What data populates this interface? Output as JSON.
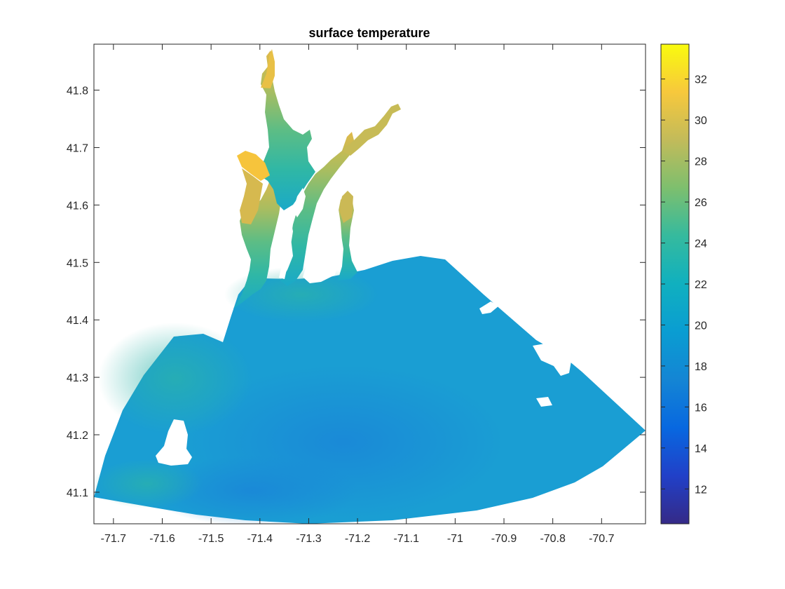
{
  "chart_data": {
    "type": "heatmap",
    "title": "surface temperature",
    "xlabel": "",
    "ylabel": "",
    "xlim": [
      -71.74,
      -70.61
    ],
    "ylim": [
      41.045,
      41.88
    ],
    "x_ticks": [
      -71.7,
      -71.6,
      -71.5,
      -71.4,
      -71.3,
      -71.2,
      -71.1,
      -71,
      -70.9,
      -70.8,
      -70.7
    ],
    "x_tick_labels": [
      "-71.7",
      "-71.6",
      "-71.5",
      "-71.4",
      "-71.3",
      "-71.2",
      "-71.1",
      "-71",
      "-70.9",
      "-70.8",
      "-70.7"
    ],
    "y_ticks": [
      41.1,
      41.2,
      41.3,
      41.4,
      41.5,
      41.6,
      41.7,
      41.8
    ],
    "y_tick_labels": [
      "41.1",
      "41.2",
      "41.3",
      "41.4",
      "41.5",
      "41.6",
      "41.7",
      "41.8"
    ],
    "colorbar": {
      "colormap": "parula",
      "range": [
        10.3,
        33.7
      ],
      "ticks": [
        12,
        14,
        16,
        18,
        20,
        22,
        24,
        26,
        28,
        30,
        32
      ],
      "tick_labels": [
        "12",
        "14",
        "16",
        "18",
        "20",
        "22",
        "24",
        "26",
        "28",
        "30",
        "32"
      ]
    },
    "grid": false,
    "approx_field_values": {
      "open_shelf": 17.5,
      "shelf_minimum": 15.8,
      "southwest_coast": 21,
      "bay_mouth": 21,
      "mid_bay": 24,
      "upper_bay": 27,
      "providence_river_head": 30,
      "northwest_cove": 31,
      "sakonnet_river": 26
    },
    "colors": {
      "low": "#352a87",
      "mid": "#0fa8d3",
      "high": "#f9fb0e"
    }
  }
}
